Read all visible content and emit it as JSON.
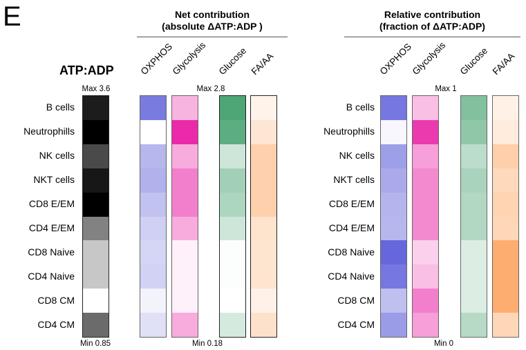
{
  "panel_letter": "E",
  "chart_data": {
    "type": "heatmap",
    "rows": [
      "B cells",
      "Neutrophills",
      "NK cells",
      "NKT cells",
      "CD8 E/EM",
      "CD4 E/EM",
      "CD8 Naive",
      "CD4 Naive",
      "CD8 CM",
      "CD4 CM"
    ],
    "panels": [
      {
        "id": "atp",
        "title": "ATP:ADP",
        "max_label": "Max 3.6",
        "min_label": "Min 0.85",
        "range": [
          0.85,
          3.6
        ],
        "columns": [
          {
            "name": "ATP:ADP",
            "color": "#000000",
            "values": [
              3.3,
              3.6,
              2.8,
              3.35,
              3.6,
              2.2,
              1.45,
              1.45,
              0.85,
              2.45
            ]
          }
        ]
      },
      {
        "id": "net",
        "title_line1": "Net contribution",
        "title_line2": "(absolute ΔATP:ADP )",
        "max_label": "Max 2.8",
        "min_label": "Min 0.18",
        "range": [
          0.18,
          2.8
        ],
        "columns": [
          {
            "name": "OXPHOS",
            "color": "#6f70dc",
            "values": [
              2.6,
              0.18,
              1.5,
              1.6,
              1.3,
              1.05,
              0.95,
              1.0,
              0.4,
              0.75
            ]
          },
          {
            "name": "Glycolysis",
            "color": "#ea2aa8",
            "values": [
              1.1,
              2.8,
              1.2,
              1.75,
              1.75,
              1.2,
              0.35,
              0.35,
              0.35,
              1.2
            ]
          },
          {
            "name": "Glucose",
            "color": "#3f9e6a",
            "values": [
              2.6,
              2.4,
              0.85,
              1.45,
              1.3,
              0.85,
              0.22,
              0.22,
              0.18,
              0.75
            ]
          },
          {
            "name": "FA/AA",
            "color": "#fd9f55",
            "values": [
              0.5,
              0.85,
              1.45,
              1.45,
              1.45,
              0.95,
              0.9,
              0.9,
              0.55,
              1.0
            ]
          }
        ]
      },
      {
        "id": "relative",
        "title_line1": "Relative contribution",
        "title_line2": "(fraction of ΔATP:ADP)",
        "max_label": "Max 1",
        "min_label": "Min 0",
        "range": [
          0,
          1
        ],
        "columns": [
          {
            "name": "OXPHOS",
            "color": "#5e5fda",
            "values": [
              0.85,
              0.05,
              0.6,
              0.53,
              0.46,
              0.45,
              0.95,
              0.85,
              0.4,
              0.62
            ]
          },
          {
            "name": "Glycolysis",
            "color": "#ea2aa8",
            "values": [
              0.3,
              0.93,
              0.45,
              0.55,
              0.55,
              0.55,
              0.22,
              0.3,
              0.6,
              0.45
            ]
          },
          {
            "name": "Glucose",
            "color": "#3f9e6a",
            "values": [
              0.65,
              0.58,
              0.35,
              0.45,
              0.4,
              0.4,
              0.18,
              0.18,
              0.18,
              0.38
            ]
          },
          {
            "name": "FA/AA",
            "color": "#fd9f55",
            "values": [
              0.15,
              0.2,
              0.5,
              0.4,
              0.45,
              0.42,
              0.85,
              0.85,
              0.85,
              0.42
            ]
          }
        ]
      }
    ]
  }
}
